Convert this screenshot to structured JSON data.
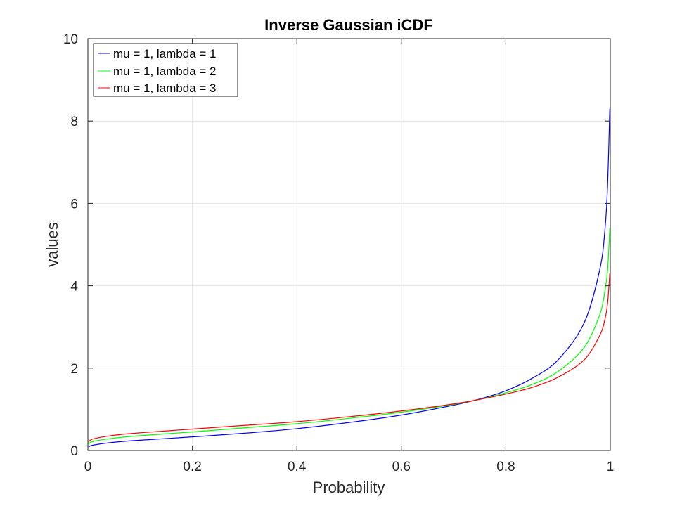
{
  "chart_data": {
    "type": "line",
    "title": "Inverse Gaussian iCDF",
    "xlabel": "Probability",
    "ylabel": "values",
    "xlim": [
      0,
      1
    ],
    "ylim": [
      0,
      10
    ],
    "x_ticks": [
      "0",
      "0.2",
      "0.4",
      "0.6",
      "0.8",
      "1"
    ],
    "y_ticks": [
      "0",
      "2",
      "4",
      "6",
      "8",
      "10"
    ],
    "grid": true,
    "legend_position": "top-left",
    "x": [
      0.001,
      0.01,
      0.05,
      0.1,
      0.2,
      0.3,
      0.4,
      0.5,
      0.6,
      0.7,
      0.75,
      0.8,
      0.85,
      0.9,
      0.95,
      0.98,
      0.99,
      0.995,
      0.999
    ],
    "series": [
      {
        "name": "mu = 1, lambda = 1",
        "color": "#0000ff",
        "values": [
          0.08,
          0.13,
          0.2,
          0.25,
          0.33,
          0.42,
          0.53,
          0.68,
          0.86,
          1.1,
          1.25,
          1.45,
          1.75,
          2.2,
          3.1,
          4.4,
          5.4,
          6.5,
          8.3
        ]
      },
      {
        "name": "mu = 1, lambda = 2",
        "color": "#00ff00",
        "values": [
          0.15,
          0.22,
          0.3,
          0.36,
          0.45,
          0.55,
          0.65,
          0.78,
          0.93,
          1.12,
          1.24,
          1.4,
          1.6,
          1.92,
          2.5,
          3.3,
          3.9,
          4.4,
          5.4
        ]
      },
      {
        "name": "mu = 1, lambda = 3",
        "color": "#ff0000",
        "values": [
          0.2,
          0.28,
          0.37,
          0.43,
          0.52,
          0.61,
          0.7,
          0.82,
          0.96,
          1.13,
          1.24,
          1.37,
          1.53,
          1.78,
          2.2,
          2.8,
          3.2,
          3.6,
          4.3
        ]
      }
    ]
  }
}
